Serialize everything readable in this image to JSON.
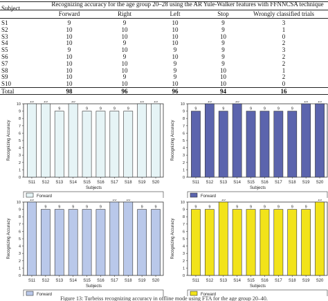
{
  "table": {
    "subject_header": "Subject",
    "title": "Recognizing accuracy for the age group 20–28 using the AR Yule-Walker features with FFNNCSA technique",
    "columns": [
      "Forward",
      "Right",
      "Left",
      "Stop",
      "Wrongly classified trials"
    ],
    "rows": [
      {
        "subject": "S1",
        "values": [
          "9",
          "9",
          "10",
          "9",
          "3"
        ]
      },
      {
        "subject": "S2",
        "values": [
          "10",
          "10",
          "10",
          "9",
          "1"
        ]
      },
      {
        "subject": "S3",
        "values": [
          "10",
          "10",
          "10",
          "10",
          "0"
        ]
      },
      {
        "subject": "S4",
        "values": [
          "10",
          "9",
          "10",
          "9",
          "2"
        ]
      },
      {
        "subject": "S5",
        "values": [
          "9",
          "10",
          "9",
          "9",
          "3"
        ]
      },
      {
        "subject": "S6",
        "values": [
          "10",
          "9",
          "10",
          "9",
          "2"
        ]
      },
      {
        "subject": "S7",
        "values": [
          "10",
          "10",
          "9",
          "9",
          "2"
        ]
      },
      {
        "subject": "S8",
        "values": [
          "10",
          "10",
          "9",
          "10",
          "1"
        ]
      },
      {
        "subject": "S9",
        "values": [
          "10",
          "9",
          "9",
          "10",
          "2"
        ]
      },
      {
        "subject": "S10",
        "values": [
          "10",
          "10",
          "10",
          "10",
          "0"
        ]
      }
    ],
    "total": {
      "subject": "Total",
      "values": [
        "98",
        "96",
        "96",
        "94",
        "16"
      ]
    }
  },
  "chart_data": [
    {
      "type": "bar",
      "categories": [
        "S11",
        "S12",
        "S13",
        "S14",
        "S15",
        "S16",
        "S17",
        "S18",
        "S19",
        "S20"
      ],
      "series": [
        {
          "name": "Forward",
          "values": [
            10,
            10,
            9,
            10,
            9,
            9,
            9,
            9,
            10,
            10
          ]
        }
      ],
      "xlabel": "Subjects",
      "ylabel": "Recognizing Accuracy",
      "ylim": [
        0,
        10
      ],
      "yticks": [
        0,
        1,
        2,
        3,
        4,
        5,
        6,
        7,
        8,
        9,
        10
      ],
      "color": "#e6f4f6",
      "grid": false,
      "legend": "bottom-left",
      "value_labels": true
    },
    {
      "type": "bar",
      "categories": [
        "S11",
        "S12",
        "S13",
        "S14",
        "S15",
        "S16",
        "S17",
        "S18",
        "S19",
        "S20"
      ],
      "series": [
        {
          "name": "Forward",
          "values": [
            9,
            10,
            9,
            10,
            9,
            9,
            9,
            9,
            10,
            10
          ]
        }
      ],
      "xlabel": "Subjects",
      "ylabel": "Recognizing Accuracy",
      "ylim": [
        0,
        10
      ],
      "yticks": [
        0,
        1,
        2,
        3,
        4,
        5,
        6,
        7,
        8,
        9,
        10
      ],
      "color": "#5b64ad",
      "grid": false,
      "legend": "bottom-left",
      "value_labels": true
    },
    {
      "type": "bar",
      "categories": [
        "S11",
        "S12",
        "S13",
        "S14",
        "S15",
        "S16",
        "S17",
        "S18",
        "S19",
        "S20"
      ],
      "series": [
        {
          "name": "Forward",
          "values": [
            10,
            9,
            9,
            9,
            9,
            9,
            10,
            10,
            9,
            9
          ]
        }
      ],
      "xlabel": "Subjects",
      "ylabel": "Recognizing Accuracy",
      "ylim": [
        0,
        10
      ],
      "yticks": [
        0,
        1,
        2,
        3,
        4,
        5,
        6,
        7,
        8,
        9,
        10
      ],
      "color": "#b9c8ea",
      "grid": false,
      "legend": "bottom-left",
      "value_labels": true
    },
    {
      "type": "bar",
      "categories": [
        "S11",
        "S12",
        "S13",
        "S14",
        "S15",
        "S16",
        "S17",
        "S18",
        "S19",
        "S20"
      ],
      "series": [
        {
          "name": "Forward",
          "values": [
            9,
            9,
            10,
            9,
            9,
            9,
            9,
            9,
            9,
            10
          ]
        }
      ],
      "xlabel": "Subjects",
      "ylabel": "Recognizing Accuracy",
      "ylim": [
        0,
        10
      ],
      "yticks": [
        0,
        1,
        2,
        3,
        4,
        5,
        6,
        7,
        8,
        9,
        10
      ],
      "color": "#f2e31a",
      "grid": false,
      "legend": "bottom-left",
      "value_labels": true
    }
  ],
  "caption": "Figure 13: Turbeiss recognizing accuracy in offline mode using FTA for the age group 20–40."
}
